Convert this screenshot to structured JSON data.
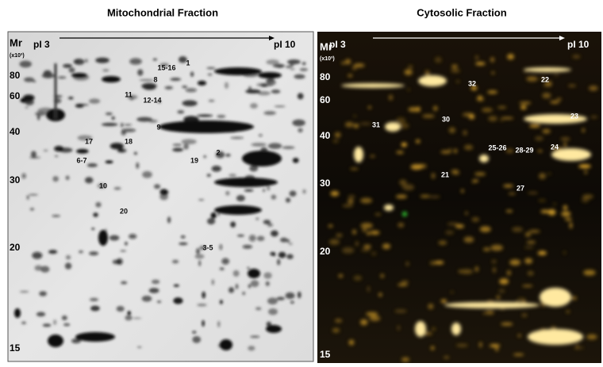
{
  "panels": [
    {
      "title": "Mitochondrial Fraction",
      "axis_label": "Mr",
      "axis_unit": "(x10³)",
      "ph_start": "pI 3",
      "ph_end": "pI 10",
      "mr_ticks": [
        "80",
        "60",
        "40",
        "30",
        "20",
        "15"
      ],
      "spot_labels": [
        "1",
        "15-16",
        "8",
        "11",
        "12-14",
        "9",
        "17",
        "18",
        "6-7",
        "2",
        "19",
        "10",
        "20",
        "3-5"
      ]
    },
    {
      "title": "Cytosolic Fraction",
      "axis_label": "Mr",
      "axis_unit": "(x10³)",
      "ph_start": "pI 3",
      "ph_end": "pI 10",
      "mr_ticks": [
        "80",
        "60",
        "40",
        "30",
        "20",
        "15"
      ],
      "spot_labels": [
        "22",
        "32",
        "30",
        "23",
        "31",
        "24",
        "25-26",
        "28-29",
        "21",
        "27"
      ]
    }
  ]
}
